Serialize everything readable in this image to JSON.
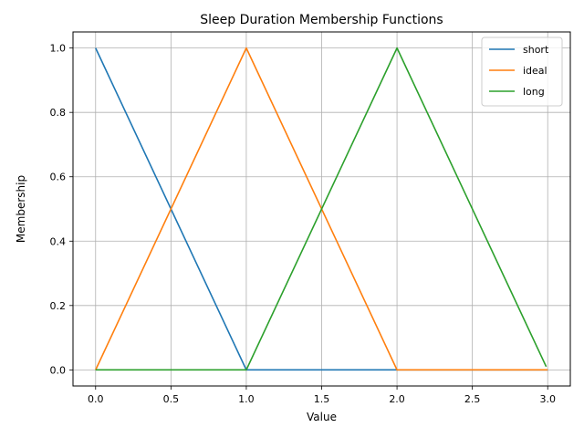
{
  "chart_data": {
    "type": "line",
    "title": "Sleep Duration Membership Functions",
    "xlabel": "Value",
    "ylabel": "Membership",
    "xlim": [
      -0.15,
      3.15
    ],
    "ylim": [
      -0.05,
      1.05
    ],
    "xticks": [
      0.0,
      0.5,
      1.0,
      1.5,
      2.0,
      2.5,
      3.0
    ],
    "xtick_labels": [
      "0.0",
      "0.5",
      "1.0",
      "1.5",
      "2.0",
      "2.5",
      "3.0"
    ],
    "yticks": [
      0.0,
      0.2,
      0.4,
      0.6,
      0.8,
      1.0
    ],
    "ytick_labels": [
      "0.0",
      "0.2",
      "0.4",
      "0.6",
      "0.8",
      "1.0"
    ],
    "grid": true,
    "legend_position": "top-right",
    "series": [
      {
        "name": "short",
        "color": "#1f77b4",
        "x": [
          0,
          1,
          2,
          3
        ],
        "y": [
          1.0,
          0.0,
          0.0,
          0.0
        ]
      },
      {
        "name": "ideal",
        "color": "#ff7f0e",
        "x": [
          0,
          1,
          2,
          3
        ],
        "y": [
          0.0,
          1.0,
          0.0,
          0.0
        ]
      },
      {
        "name": "long",
        "color": "#2ca02c",
        "x": [
          0,
          1,
          2,
          2.99
        ],
        "y": [
          0.0,
          0.0,
          1.0,
          0.01
        ]
      }
    ]
  }
}
